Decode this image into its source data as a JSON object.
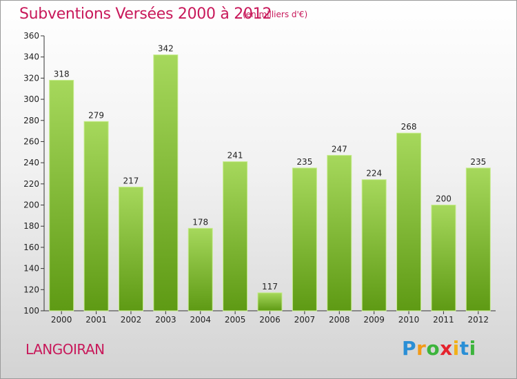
{
  "chart_data": {
    "type": "bar",
    "title": "Subventions Versées 2000 à 2012",
    "subtitle": "(en milliers d'€)",
    "categories": [
      "2000",
      "2001",
      "2002",
      "2003",
      "2004",
      "2005",
      "2006",
      "2007",
      "2008",
      "2009",
      "2010",
      "2011",
      "2012"
    ],
    "values": [
      318,
      279,
      217,
      342,
      178,
      241,
      117,
      235,
      247,
      224,
      268,
      200,
      235
    ],
    "ylim": [
      100,
      360
    ],
    "yticks": [
      100,
      120,
      140,
      160,
      180,
      200,
      220,
      240,
      260,
      280,
      300,
      320,
      340,
      360
    ],
    "grid": false,
    "colors": {
      "bar_top": "#a6d85c",
      "bar_bottom": "#5e9a14",
      "text_accent": "#c8185a"
    }
  },
  "footer": {
    "town": "LANGOIRAN",
    "logo_letters": [
      {
        "ch": "P",
        "color": "#2a8fd6"
      },
      {
        "ch": "r",
        "color": "#f29a18"
      },
      {
        "ch": "o",
        "color": "#3cb43c"
      },
      {
        "ch": "x",
        "color": "#e5232d"
      },
      {
        "ch": "i",
        "color": "#f2b018"
      },
      {
        "ch": "t",
        "color": "#2a8fd6"
      },
      {
        "ch": "i",
        "color": "#3cb43c"
      }
    ]
  }
}
